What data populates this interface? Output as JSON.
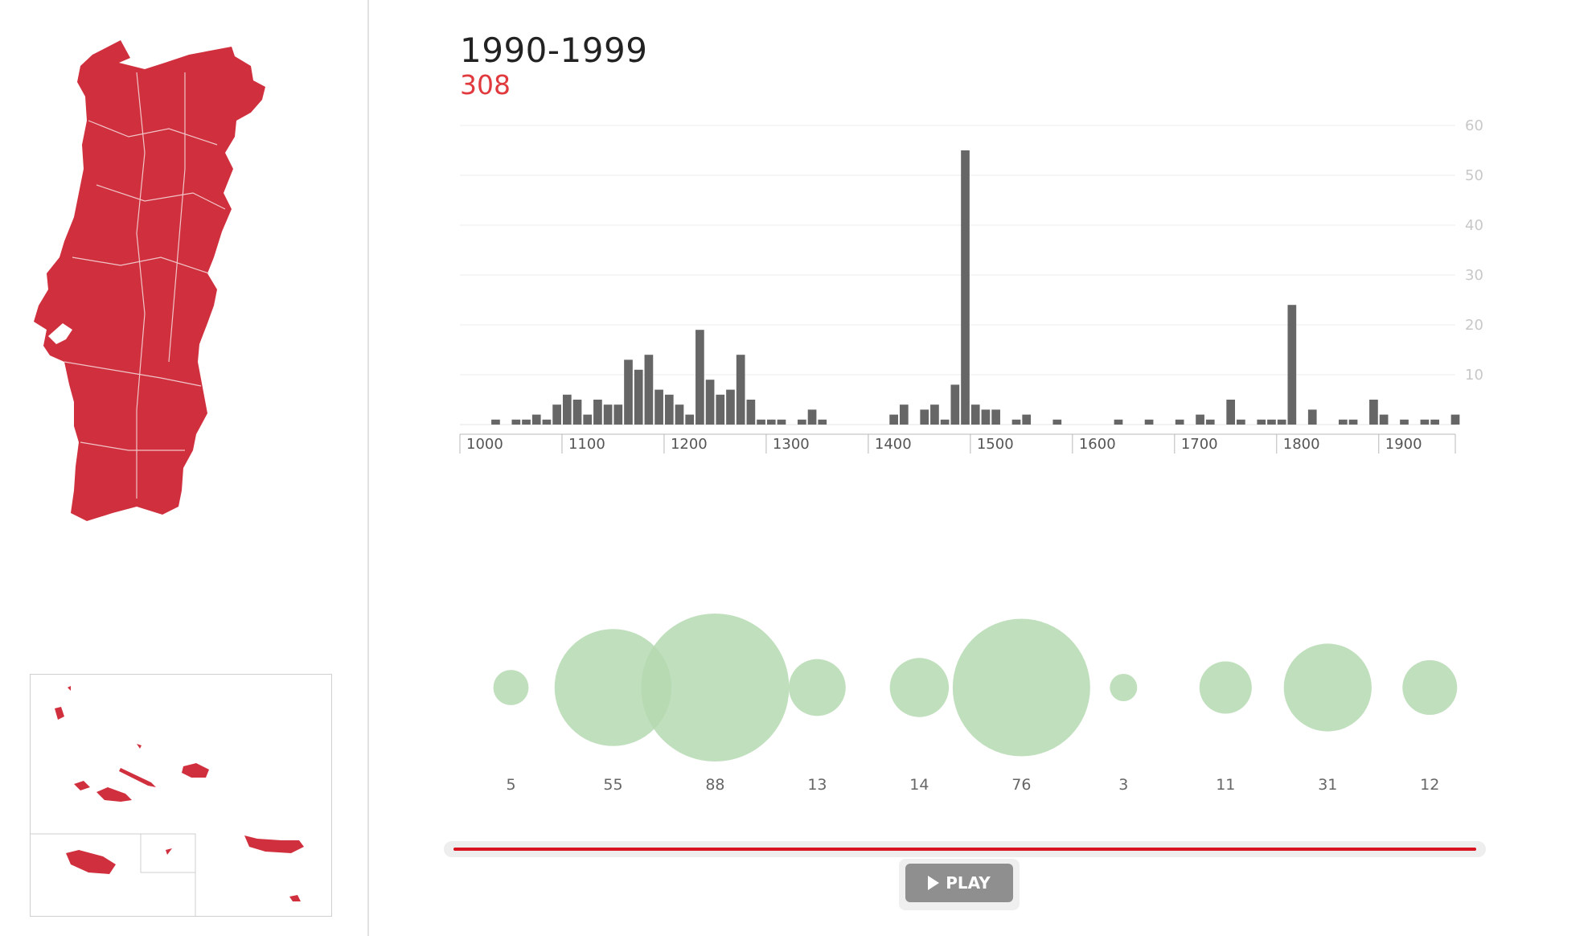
{
  "header": {
    "period": "1990-1999",
    "total": "308"
  },
  "colors": {
    "map_fill": "#d0303e",
    "bar_fill": "#666666",
    "bubble_fill": "#b5d9b1",
    "accent_red": "#e03a3e",
    "progress_red": "#d9121f"
  },
  "chart_data": [
    {
      "type": "bar",
      "title": "",
      "xlabel": "",
      "ylabel": "",
      "xlim": [
        1000,
        1975
      ],
      "ylim": [
        0,
        60
      ],
      "x_ticks": [
        "1000",
        "1100",
        "1200",
        "1300",
        "1400",
        "1500",
        "1600",
        "1700",
        "1800",
        "1900"
      ],
      "y_ticks": [
        "10",
        "20",
        "30",
        "40",
        "50",
        "60"
      ],
      "grid": true,
      "bin_width_years": 10,
      "bins": [
        {
          "x": 1030,
          "y": 1
        },
        {
          "x": 1050,
          "y": 1
        },
        {
          "x": 1060,
          "y": 1
        },
        {
          "x": 1070,
          "y": 2
        },
        {
          "x": 1080,
          "y": 1
        },
        {
          "x": 1090,
          "y": 4
        },
        {
          "x": 1100,
          "y": 6
        },
        {
          "x": 1110,
          "y": 5
        },
        {
          "x": 1120,
          "y": 2
        },
        {
          "x": 1130,
          "y": 5
        },
        {
          "x": 1140,
          "y": 4
        },
        {
          "x": 1150,
          "y": 4
        },
        {
          "x": 1160,
          "y": 13
        },
        {
          "x": 1170,
          "y": 11
        },
        {
          "x": 1180,
          "y": 14
        },
        {
          "x": 1190,
          "y": 7
        },
        {
          "x": 1200,
          "y": 6
        },
        {
          "x": 1210,
          "y": 4
        },
        {
          "x": 1220,
          "y": 2
        },
        {
          "x": 1230,
          "y": 19
        },
        {
          "x": 1240,
          "y": 9
        },
        {
          "x": 1250,
          "y": 6
        },
        {
          "x": 1260,
          "y": 7
        },
        {
          "x": 1270,
          "y": 14
        },
        {
          "x": 1280,
          "y": 5
        },
        {
          "x": 1290,
          "y": 1
        },
        {
          "x": 1300,
          "y": 1
        },
        {
          "x": 1310,
          "y": 1
        },
        {
          "x": 1330,
          "y": 1
        },
        {
          "x": 1340,
          "y": 3
        },
        {
          "x": 1350,
          "y": 1
        },
        {
          "x": 1420,
          "y": 2
        },
        {
          "x": 1430,
          "y": 4
        },
        {
          "x": 1450,
          "y": 3
        },
        {
          "x": 1460,
          "y": 4
        },
        {
          "x": 1470,
          "y": 1
        },
        {
          "x": 1480,
          "y": 8
        },
        {
          "x": 1490,
          "y": 55
        },
        {
          "x": 1500,
          "y": 4
        },
        {
          "x": 1510,
          "y": 3
        },
        {
          "x": 1520,
          "y": 3
        },
        {
          "x": 1540,
          "y": 1
        },
        {
          "x": 1550,
          "y": 2
        },
        {
          "x": 1580,
          "y": 1
        },
        {
          "x": 1640,
          "y": 1
        },
        {
          "x": 1670,
          "y": 1
        },
        {
          "x": 1700,
          "y": 1
        },
        {
          "x": 1720,
          "y": 2
        },
        {
          "x": 1730,
          "y": 1
        },
        {
          "x": 1750,
          "y": 5
        },
        {
          "x": 1760,
          "y": 1
        },
        {
          "x": 1780,
          "y": 1
        },
        {
          "x": 1790,
          "y": 1
        },
        {
          "x": 1800,
          "y": 1
        },
        {
          "x": 1810,
          "y": 24
        },
        {
          "x": 1830,
          "y": 3
        },
        {
          "x": 1860,
          "y": 1
        },
        {
          "x": 1870,
          "y": 1
        },
        {
          "x": 1890,
          "y": 5
        },
        {
          "x": 1900,
          "y": 2
        },
        {
          "x": 1920,
          "y": 1
        },
        {
          "x": 1940,
          "y": 1
        },
        {
          "x": 1950,
          "y": 1
        },
        {
          "x": 1970,
          "y": 2
        }
      ]
    },
    {
      "type": "scatter",
      "title": "",
      "description_of_values": "bubble area by century",
      "centuries": [
        1000,
        1100,
        1200,
        1300,
        1400,
        1500,
        1600,
        1700,
        1800,
        1900
      ],
      "values": [
        5,
        55,
        88,
        13,
        14,
        76,
        3,
        11,
        31,
        12
      ]
    }
  ],
  "timeline": {
    "progress_percent": 100
  },
  "controls": {
    "play_label": "PLAY"
  }
}
